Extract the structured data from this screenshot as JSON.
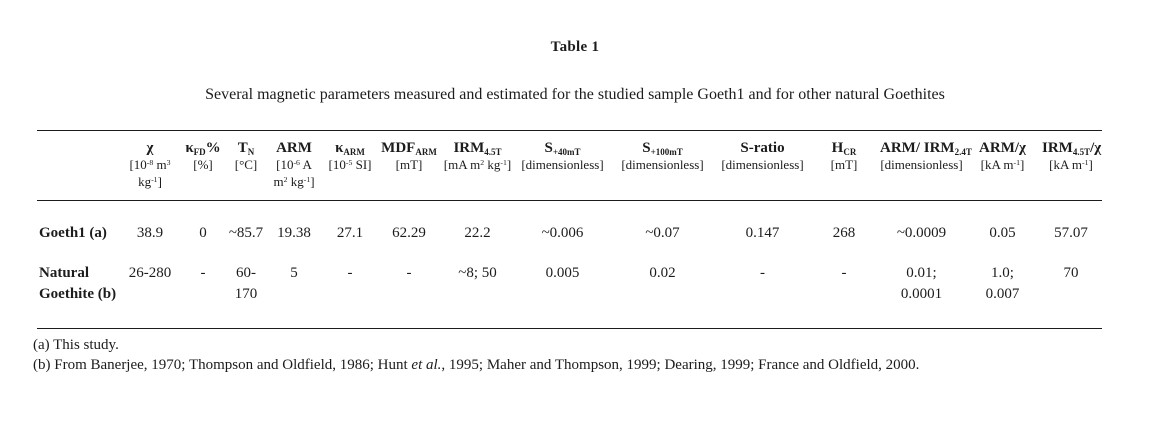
{
  "title": "Table 1",
  "caption": "Several magnetic parameters measured and estimated for the studied sample Goeth1 and for other natural Goethites",
  "colors": {
    "background": "#ffffff",
    "text": "#1c1c1c",
    "rule": "#1c1c1c"
  },
  "table": {
    "columns": [
      {
        "name": [
          {
            "t": "χ"
          }
        ],
        "units": [
          {
            "t": "[10"
          },
          {
            "t": "-8",
            "s": "sup"
          },
          {
            "t": " m"
          },
          {
            "t": "3",
            "s": "sup"
          },
          {
            "t": "\nkg"
          },
          {
            "t": "-1",
            "s": "sup"
          },
          {
            "t": "]"
          }
        ]
      },
      {
        "name": [
          {
            "t": "κ"
          },
          {
            "t": "FD",
            "s": "sub"
          },
          {
            "t": "%"
          }
        ],
        "units": [
          {
            "t": "[%]"
          }
        ]
      },
      {
        "name": [
          {
            "t": "T"
          },
          {
            "t": "N",
            "s": "sub"
          }
        ],
        "units": [
          {
            "t": "[°C]"
          }
        ]
      },
      {
        "name": [
          {
            "t": "ARM"
          }
        ],
        "units": [
          {
            "t": "[10"
          },
          {
            "t": "-6",
            "s": "sup"
          },
          {
            "t": " A\nm"
          },
          {
            "t": "2",
            "s": "sup"
          },
          {
            "t": " kg"
          },
          {
            "t": "-1",
            "s": "sup"
          },
          {
            "t": "]"
          }
        ]
      },
      {
        "name": [
          {
            "t": "κ"
          },
          {
            "t": "ARM",
            "s": "sub"
          }
        ],
        "units": [
          {
            "t": "[10"
          },
          {
            "t": "-5",
            "s": "sup"
          },
          {
            "t": " SI]"
          }
        ]
      },
      {
        "name": [
          {
            "t": "MDF"
          },
          {
            "t": "ARM",
            "s": "sub"
          }
        ],
        "units": [
          {
            "t": "[mT]"
          }
        ]
      },
      {
        "name": [
          {
            "t": "IRM"
          },
          {
            "t": "4.5T",
            "s": "sub"
          }
        ],
        "units": [
          {
            "t": "[mA m"
          },
          {
            "t": "2",
            "s": "sup"
          },
          {
            "t": " kg"
          },
          {
            "t": "-1",
            "s": "sup"
          },
          {
            "t": "]"
          }
        ]
      },
      {
        "name": [
          {
            "t": "S"
          },
          {
            "t": "+40mT",
            "s": "sub"
          }
        ],
        "units": [
          {
            "t": "[dimensionless]"
          }
        ]
      },
      {
        "name": [
          {
            "t": "S"
          },
          {
            "t": "+100mT",
            "s": "sub"
          }
        ],
        "units": [
          {
            "t": "[dimensionless]"
          }
        ]
      },
      {
        "name": [
          {
            "t": "S-ratio"
          }
        ],
        "units": [
          {
            "t": "[dimensionless]"
          }
        ]
      },
      {
        "name": [
          {
            "t": "H"
          },
          {
            "t": "CR",
            "s": "sub"
          }
        ],
        "units": [
          {
            "t": "[mT]"
          }
        ]
      },
      {
        "name": [
          {
            "t": "ARM/ IRM"
          },
          {
            "t": "2.4T",
            "s": "sub"
          }
        ],
        "units": [
          {
            "t": "[dimensionless]"
          }
        ]
      },
      {
        "name": [
          {
            "t": "ARM/χ"
          }
        ],
        "units": [
          {
            "t": "[kA m"
          },
          {
            "t": "-1",
            "s": "sup"
          },
          {
            "t": "]"
          }
        ]
      },
      {
        "name": [
          {
            "t": "IRM"
          },
          {
            "t": "4.5T",
            "s": "sub"
          },
          {
            "t": "/χ"
          }
        ],
        "units": [
          {
            "t": "[kA m"
          },
          {
            "t": "-1",
            "s": "sup"
          },
          {
            "t": "]"
          }
        ]
      }
    ],
    "rows": [
      {
        "label": "Goeth1 (a)",
        "values": [
          "38.9",
          "0",
          "~85.7",
          "19.38",
          "27.1",
          "62.29",
          "22.2",
          "~0.006",
          "~0.07",
          "0.147",
          "268",
          "~0.0009",
          "0.05",
          "57.07"
        ]
      },
      {
        "label": "Natural\nGoethite (b)",
        "values": [
          "26-280",
          "-",
          "60-\n170",
          "5",
          "-",
          "-",
          "~8; 50",
          "0.005",
          "0.02",
          "-",
          "-",
          "0.01;\n0.0001",
          "1.0;\n0.007",
          "70"
        ]
      }
    ]
  },
  "footnotes": [
    [
      {
        "t": "(a) This study."
      }
    ],
    [
      {
        "t": "(b) From Banerjee, 1970; Thompson and Oldfield, 1986; Hunt "
      },
      {
        "t": "et al.",
        "s": "i"
      },
      {
        "t": ", 1995; Maher and Thompson, 1999; Dearing, 1999; France and Oldfield, 2000."
      }
    ]
  ]
}
